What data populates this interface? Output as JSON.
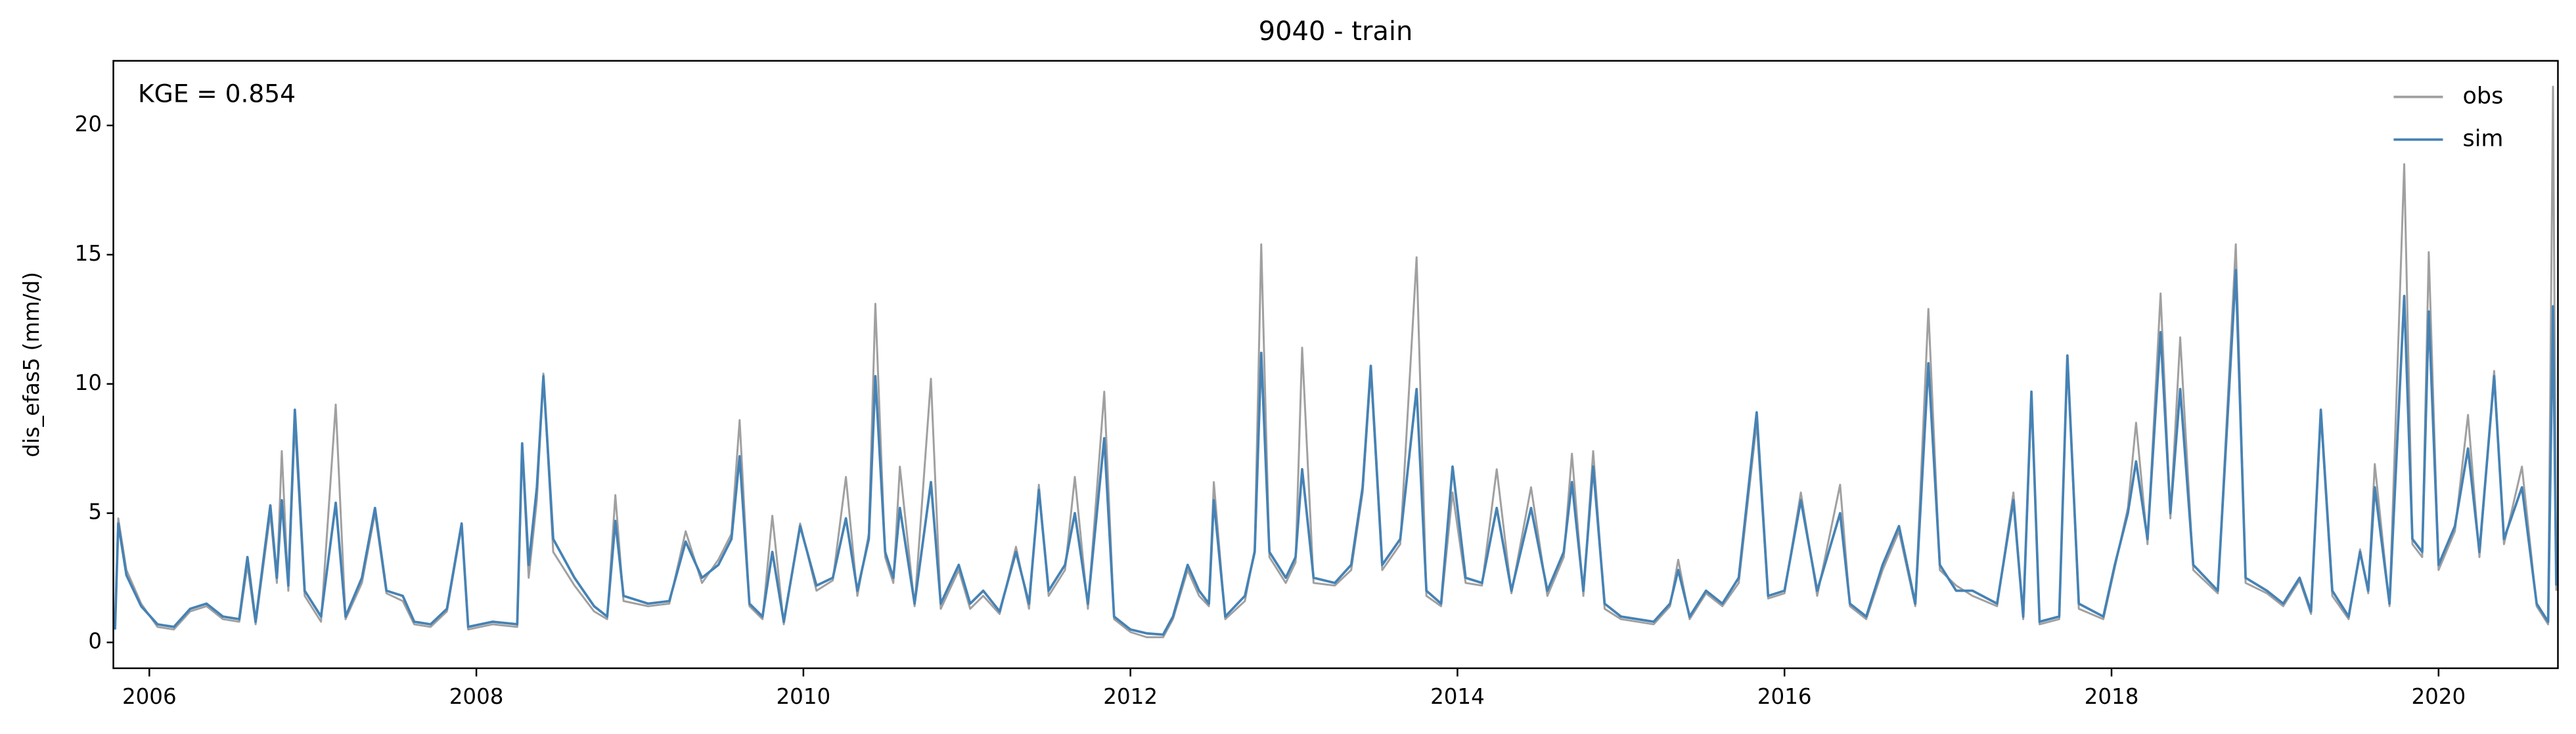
{
  "chart_data": {
    "type": "line",
    "title": "9040 - train",
    "ylabel": "dis_efas5 (mm/d)",
    "annotation": "KGE = 0.854",
    "x": [
      2005.79,
      2005.81,
      2005.86,
      2005.95,
      2006.05,
      2006.15,
      2006.25,
      2006.35,
      2006.45,
      2006.55,
      2006.6,
      2006.65,
      2006.74,
      2006.78,
      2006.81,
      2006.85,
      2006.89,
      2006.95,
      2007.05,
      2007.14,
      2007.2,
      2007.3,
      2007.38,
      2007.45,
      2007.55,
      2007.62,
      2007.72,
      2007.82,
      2007.91,
      2007.95,
      2008.1,
      2008.25,
      2008.28,
      2008.32,
      2008.37,
      2008.41,
      2008.47,
      2008.6,
      2008.72,
      2008.8,
      2008.85,
      2008.9,
      2009.05,
      2009.18,
      2009.28,
      2009.38,
      2009.48,
      2009.56,
      2009.61,
      2009.67,
      2009.75,
      2009.81,
      2009.88,
      2009.98,
      2010.08,
      2010.18,
      2010.26,
      2010.33,
      2010.4,
      2010.44,
      2010.5,
      2010.55,
      2010.59,
      2010.68,
      2010.78,
      2010.84,
      2010.95,
      2011.02,
      2011.1,
      2011.2,
      2011.3,
      2011.38,
      2011.44,
      2011.5,
      2011.6,
      2011.66,
      2011.74,
      2011.84,
      2011.9,
      2012.0,
      2012.1,
      2012.2,
      2012.26,
      2012.35,
      2012.42,
      2012.48,
      2012.51,
      2012.58,
      2012.7,
      2012.76,
      2012.8,
      2012.85,
      2012.95,
      2013.01,
      2013.05,
      2013.12,
      2013.25,
      2013.35,
      2013.42,
      2013.47,
      2013.54,
      2013.65,
      2013.75,
      2013.81,
      2013.9,
      2013.97,
      2014.05,
      2014.15,
      2014.24,
      2014.33,
      2014.45,
      2014.55,
      2014.65,
      2014.7,
      2014.77,
      2014.83,
      2014.9,
      2015.0,
      2015.2,
      2015.3,
      2015.35,
      2015.42,
      2015.52,
      2015.62,
      2015.72,
      2015.83,
      2015.9,
      2016.0,
      2016.1,
      2016.2,
      2016.34,
      2016.4,
      2016.5,
      2016.6,
      2016.7,
      2016.8,
      2016.88,
      2016.95,
      2017.05,
      2017.15,
      2017.3,
      2017.4,
      2017.46,
      2017.51,
      2017.56,
      2017.68,
      2017.73,
      2017.8,
      2017.95,
      2018.02,
      2018.1,
      2018.15,
      2018.22,
      2018.3,
      2018.36,
      2018.42,
      2018.5,
      2018.65,
      2018.76,
      2018.82,
      2018.95,
      2019.05,
      2019.15,
      2019.22,
      2019.28,
      2019.35,
      2019.45,
      2019.52,
      2019.57,
      2019.61,
      2019.7,
      2019.79,
      2019.84,
      2019.9,
      2019.94,
      2020.0,
      2020.1,
      2020.18,
      2020.25,
      2020.34,
      2020.4,
      2020.51,
      2020.6,
      2020.67,
      2020.7,
      2020.72
    ],
    "series": [
      {
        "name": "obs",
        "color": "#a0a0a0",
        "values": [
          0.5,
          4.8,
          2.8,
          1.5,
          0.6,
          0.5,
          1.2,
          1.4,
          0.9,
          0.8,
          3.0,
          0.7,
          5.0,
          2.3,
          7.4,
          2.0,
          8.5,
          1.8,
          0.8,
          9.2,
          0.9,
          2.3,
          5.0,
          1.9,
          1.6,
          0.7,
          0.6,
          1.2,
          4.5,
          0.5,
          0.7,
          0.6,
          7.5,
          2.5,
          5.5,
          10.4,
          3.5,
          2.2,
          1.2,
          0.9,
          5.7,
          1.6,
          1.4,
          1.5,
          4.3,
          2.3,
          3.2,
          4.2,
          8.6,
          1.4,
          0.9,
          4.9,
          0.7,
          4.6,
          2.0,
          2.4,
          6.4,
          1.8,
          4.2,
          13.1,
          3.3,
          2.3,
          6.8,
          1.4,
          10.2,
          1.3,
          2.8,
          1.3,
          1.8,
          1.1,
          3.7,
          1.3,
          6.1,
          1.8,
          2.8,
          6.4,
          1.3,
          9.7,
          0.9,
          0.4,
          0.2,
          0.2,
          0.9,
          2.8,
          1.8,
          1.4,
          6.2,
          0.9,
          1.6,
          3.6,
          15.4,
          3.3,
          2.3,
          3.1,
          11.4,
          2.3,
          2.2,
          2.8,
          5.8,
          10.5,
          2.8,
          3.8,
          14.9,
          1.8,
          1.4,
          5.8,
          2.3,
          2.2,
          6.7,
          1.9,
          6.0,
          1.8,
          3.3,
          7.3,
          1.8,
          7.4,
          1.3,
          0.9,
          0.7,
          1.4,
          3.2,
          0.9,
          1.9,
          1.4,
          2.3,
          8.5,
          1.7,
          1.9,
          5.8,
          1.8,
          6.1,
          1.4,
          0.9,
          2.8,
          4.3,
          1.4,
          12.9,
          2.8,
          2.2,
          1.8,
          1.4,
          5.8,
          0.9,
          9.6,
          0.7,
          0.9,
          11.0,
          1.3,
          0.9,
          2.9,
          5.2,
          8.5,
          3.8,
          13.5,
          4.8,
          11.8,
          2.8,
          1.9,
          15.4,
          2.3,
          1.9,
          1.4,
          2.4,
          1.1,
          8.8,
          1.8,
          0.9,
          3.6,
          1.9,
          6.9,
          1.4,
          18.5,
          3.8,
          3.3,
          15.1,
          2.8,
          4.3,
          8.8,
          3.3,
          10.5,
          3.8,
          6.8,
          1.4,
          0.7,
          21.5,
          2.0
        ]
      },
      {
        "name": "sim",
        "color": "#4682b4",
        "values": [
          0.5,
          4.6,
          2.6,
          1.4,
          0.7,
          0.6,
          1.3,
          1.5,
          1.0,
          0.9,
          3.3,
          0.8,
          5.3,
          2.5,
          5.5,
          2.2,
          9.0,
          2.0,
          1.0,
          5.4,
          1.0,
          2.5,
          5.2,
          2.0,
          1.8,
          0.8,
          0.7,
          1.3,
          4.6,
          0.6,
          0.8,
          0.7,
          7.7,
          3.0,
          6.0,
          10.3,
          4.0,
          2.5,
          1.4,
          1.0,
          4.7,
          1.8,
          1.5,
          1.6,
          3.9,
          2.5,
          3.0,
          4.0,
          7.2,
          1.5,
          1.0,
          3.5,
          0.8,
          4.5,
          2.2,
          2.5,
          4.8,
          2.0,
          4.0,
          10.3,
          3.5,
          2.5,
          5.2,
          1.5,
          6.2,
          1.5,
          3.0,
          1.5,
          2.0,
          1.2,
          3.5,
          1.5,
          5.9,
          2.0,
          3.0,
          5.0,
          1.5,
          7.9,
          1.0,
          0.5,
          0.35,
          0.3,
          1.0,
          3.0,
          2.0,
          1.5,
          5.5,
          1.0,
          1.8,
          3.5,
          11.2,
          3.5,
          2.5,
          3.3,
          6.7,
          2.5,
          2.3,
          3.0,
          6.0,
          10.7,
          3.0,
          4.0,
          9.8,
          2.0,
          1.5,
          6.8,
          2.5,
          2.3,
          5.2,
          2.0,
          5.2,
          2.0,
          3.5,
          6.2,
          2.0,
          6.8,
          1.5,
          1.0,
          0.8,
          1.5,
          2.8,
          1.0,
          2.0,
          1.5,
          2.5,
          8.9,
          1.8,
          2.0,
          5.5,
          2.0,
          5.0,
          1.5,
          1.0,
          3.0,
          4.5,
          1.5,
          10.8,
          3.0,
          2.0,
          2.0,
          1.5,
          5.5,
          1.0,
          9.7,
          0.8,
          1.0,
          11.1,
          1.5,
          1.0,
          3.0,
          5.0,
          7.0,
          4.0,
          12.0,
          5.0,
          9.8,
          3.0,
          2.0,
          14.4,
          2.5,
          2.0,
          1.5,
          2.5,
          1.2,
          9.0,
          2.0,
          1.0,
          3.5,
          2.0,
          6.0,
          1.5,
          13.4,
          4.0,
          3.5,
          12.8,
          3.0,
          4.5,
          7.5,
          3.5,
          10.3,
          4.0,
          6.0,
          1.5,
          0.8,
          13.0,
          2.2
        ]
      }
    ],
    "xlim": [
      2005.78,
      2020.73
    ],
    "xticks": [
      2006,
      2008,
      2010,
      2012,
      2014,
      2016,
      2018,
      2020
    ],
    "ylim": [
      -1.0,
      22.5
    ],
    "yticks": [
      0,
      5,
      10,
      15,
      20
    ],
    "grid": false,
    "legend": "upper right"
  }
}
